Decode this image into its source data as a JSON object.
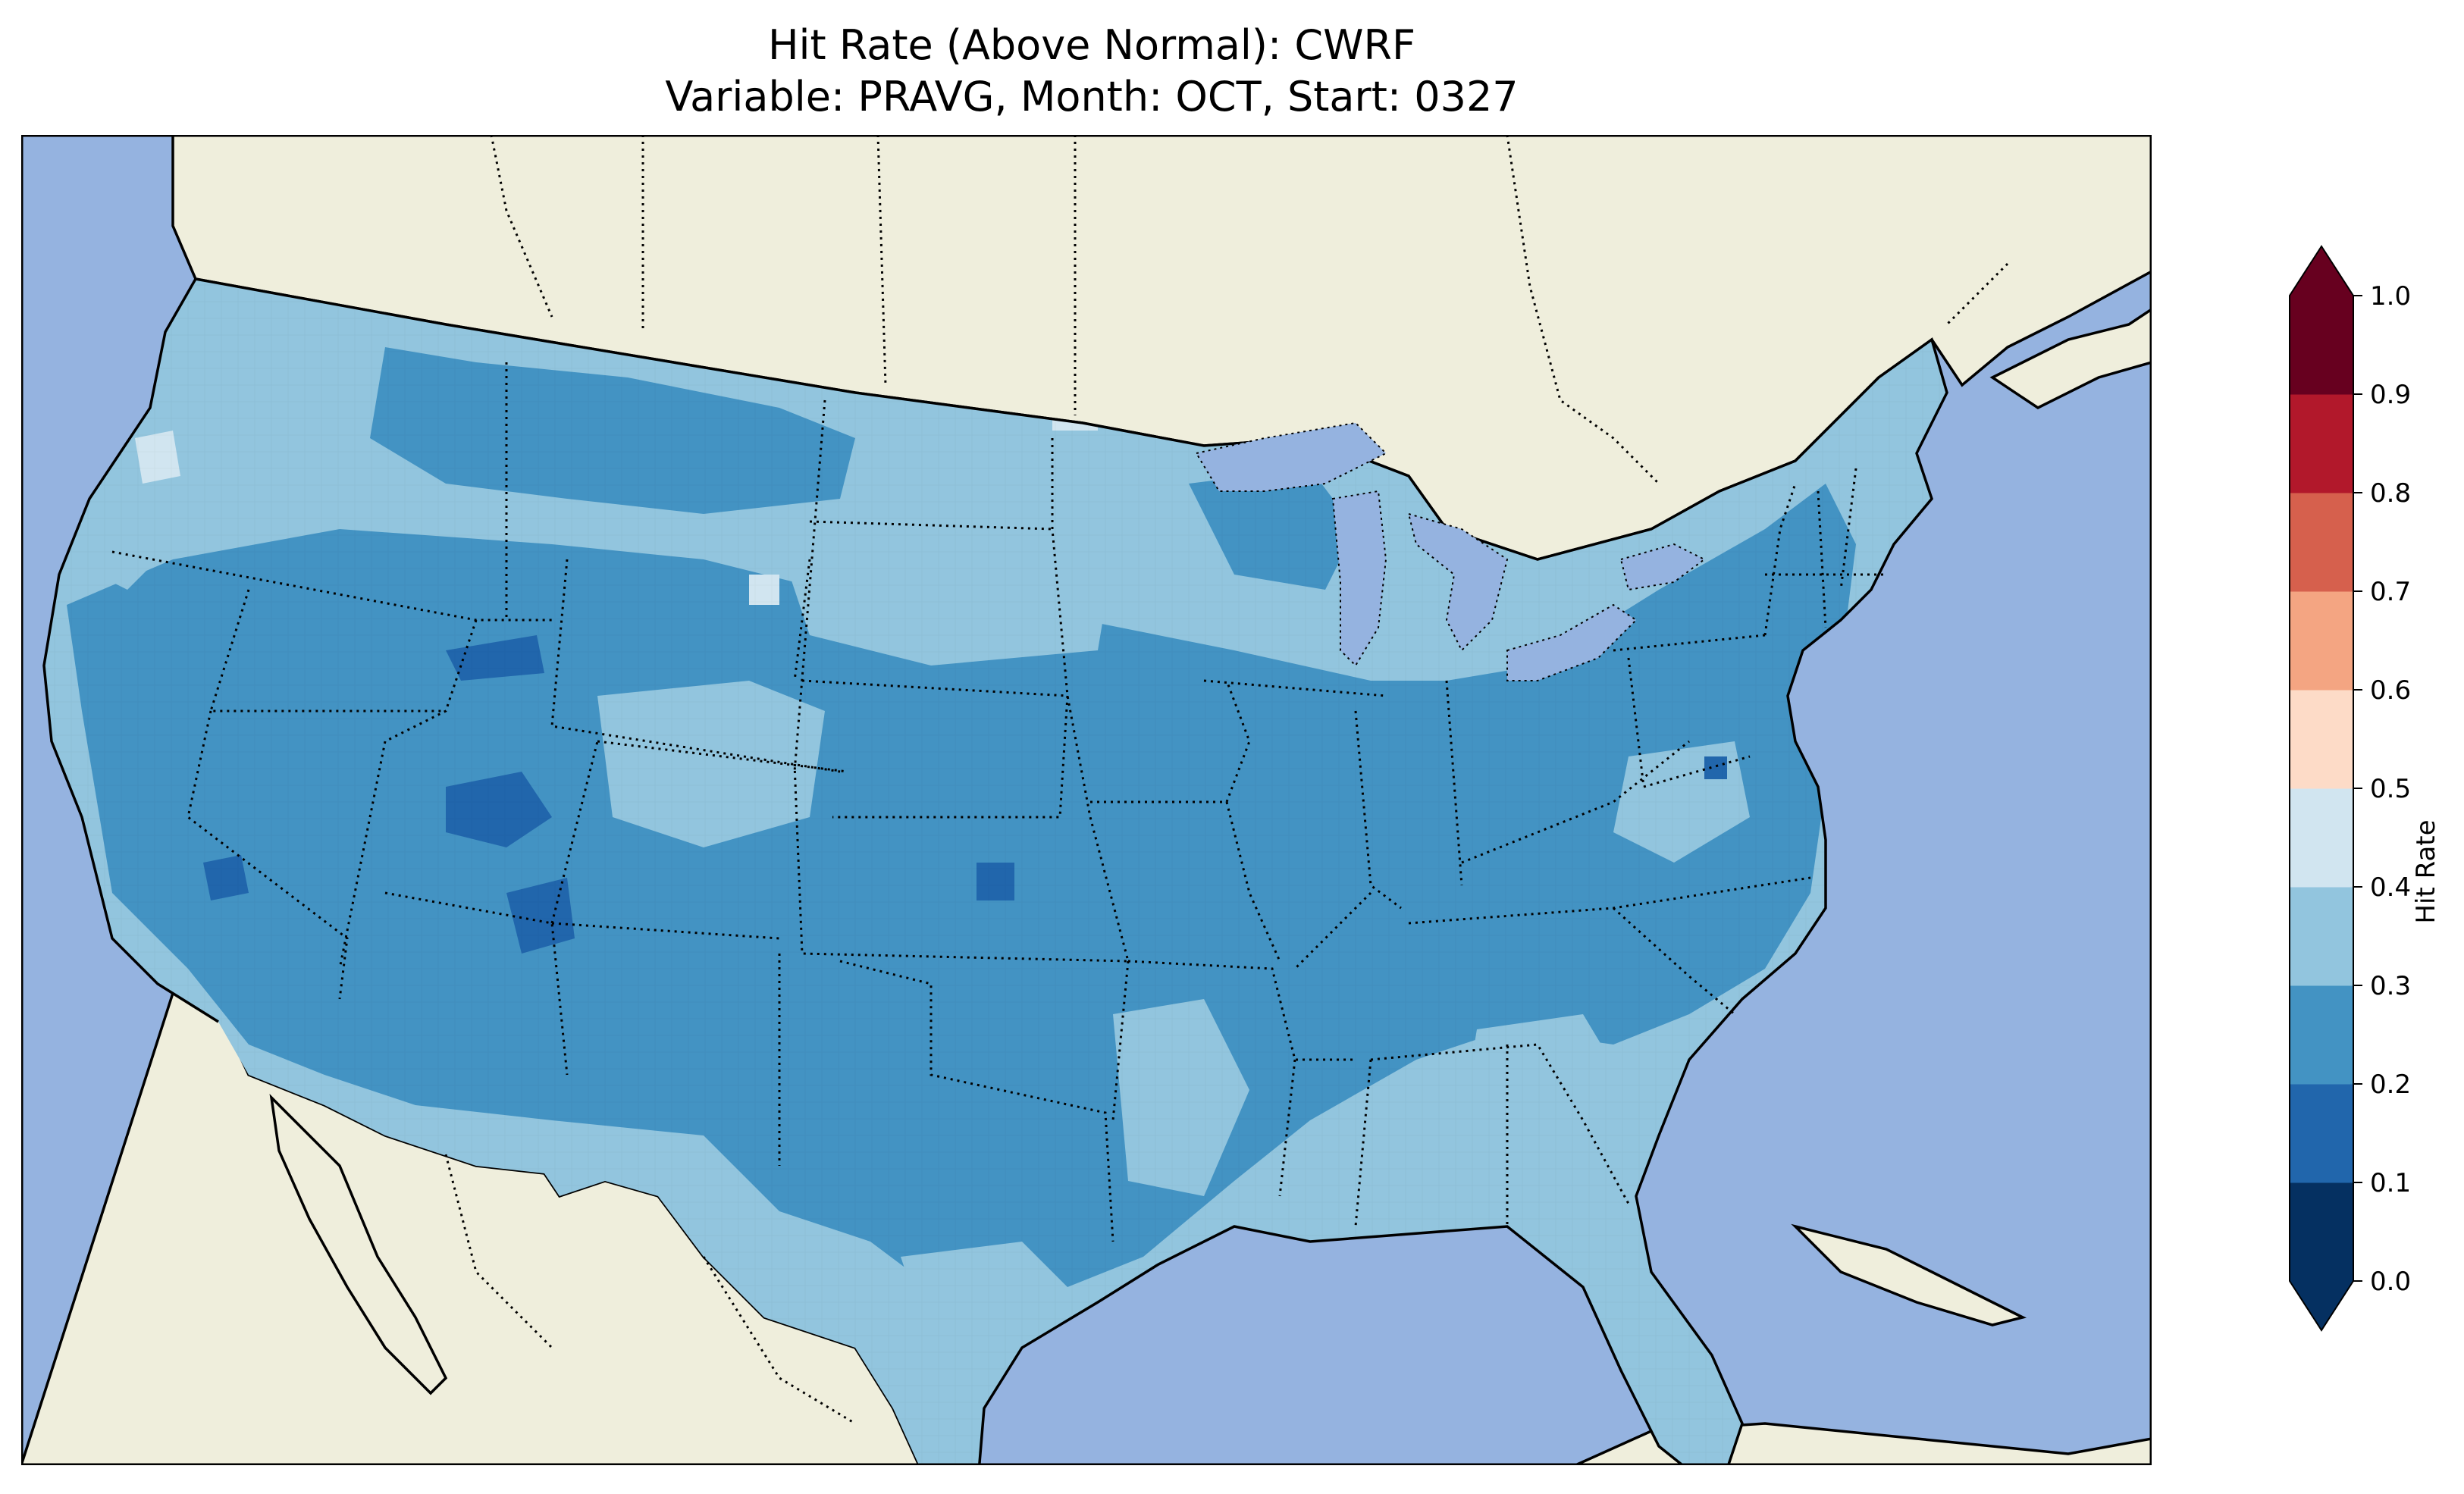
{
  "title": {
    "line1": "Hit Rate (Above Normal): CWRF",
    "line2": "Variable: PRAVG, Month: OCT, Start: 0327"
  },
  "colors": {
    "ocean": "#95b3e0",
    "land": "#efeedc",
    "lakes": "#95b3e0",
    "coast": "#000000"
  },
  "colorbar": {
    "label": "Hit Rate",
    "extend": "both",
    "ticks": [
      "0.0",
      "0.1",
      "0.2",
      "0.3",
      "0.4",
      "0.5",
      "0.6",
      "0.7",
      "0.8",
      "0.9",
      "1.0"
    ],
    "bins": [
      {
        "range": [
          0.0,
          0.1
        ],
        "color": "#053061"
      },
      {
        "range": [
          0.1,
          0.2
        ],
        "color": "#2166ac"
      },
      {
        "range": [
          0.2,
          0.3
        ],
        "color": "#4393c3"
      },
      {
        "range": [
          0.3,
          0.4
        ],
        "color": "#92c5de"
      },
      {
        "range": [
          0.4,
          0.5
        ],
        "color": "#d1e5f0"
      },
      {
        "range": [
          0.5,
          0.6
        ],
        "color": "#fddbc7"
      },
      {
        "range": [
          0.6,
          0.7
        ],
        "color": "#f4a582"
      },
      {
        "range": [
          0.7,
          0.8
        ],
        "color": "#d6604d"
      },
      {
        "range": [
          0.8,
          0.9
        ],
        "color": "#b2182b"
      },
      {
        "range": [
          0.9,
          1.0
        ],
        "color": "#67001f"
      }
    ],
    "under_color": "#053061",
    "over_color": "#67001f"
  },
  "map_data": {
    "region": "Contiguous United States",
    "dominant_range": [
      0.2,
      0.4
    ],
    "low_pockets_range": [
      0.1,
      0.2
    ],
    "high_pockets_range": [
      0.4,
      0.5
    ]
  }
}
